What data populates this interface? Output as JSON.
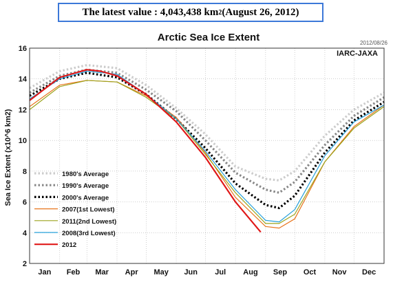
{
  "banner": {
    "prefix": "The latest value : 4,043,438 km",
    "superscript": "2",
    "suffix": " (August 26, 2012)"
  },
  "chart_data": {
    "type": "line",
    "title": "Arctic Sea Ice Extent",
    "date_stamp": "2012/08/26",
    "source_label": "IARC-JAXA",
    "ylabel": "Sea Ice Extent (x10^6 km2)",
    "xlabel": "",
    "ylim": [
      2,
      16
    ],
    "yticks": [
      "2",
      "4",
      "6",
      "8",
      "10",
      "12",
      "14",
      "16"
    ],
    "months": [
      "Jan",
      "Feb",
      "Mar",
      "Apr",
      "May",
      "Jun",
      "Jul",
      "Aug",
      "Sep",
      "Oct",
      "Nov",
      "Dec"
    ],
    "x_unit": "day of year",
    "xlim": [
      1,
      366
    ],
    "grid": true,
    "legend_position": "bottom-left",
    "series": [
      {
        "name": "1980's Average",
        "color": "#cccccc",
        "style": "dotted-thick",
        "x": [
          1,
          32,
          60,
          91,
          121,
          152,
          182,
          213,
          244,
          258,
          274,
          305,
          335,
          366
        ],
        "values": [
          13.4,
          14.5,
          14.9,
          14.7,
          13.6,
          12.1,
          10.4,
          8.3,
          7.5,
          7.4,
          8.0,
          10.3,
          12.0,
          13.1
        ]
      },
      {
        "name": "1990's Average",
        "color": "#888888",
        "style": "dotted-thick",
        "x": [
          1,
          32,
          60,
          91,
          121,
          152,
          182,
          213,
          244,
          258,
          274,
          305,
          335,
          366
        ],
        "values": [
          13.1,
          14.2,
          14.6,
          14.4,
          13.3,
          11.9,
          10.0,
          7.9,
          6.8,
          6.6,
          7.3,
          9.7,
          11.6,
          12.8
        ]
      },
      {
        "name": "2000's Average",
        "color": "#000000",
        "style": "dotted-thick",
        "x": [
          1,
          32,
          60,
          91,
          121,
          152,
          182,
          213,
          244,
          258,
          274,
          305,
          335,
          366
        ],
        "values": [
          12.9,
          14.0,
          14.4,
          14.1,
          13.0,
          11.4,
          9.5,
          7.2,
          5.8,
          5.6,
          6.4,
          9.2,
          11.3,
          12.5
        ]
      },
      {
        "name": "2007(1st Lowest)",
        "color": "#e8741c",
        "style": "solid",
        "x": [
          1,
          32,
          60,
          91,
          121,
          152,
          182,
          213,
          244,
          258,
          274,
          305,
          335,
          366
        ],
        "values": [
          12.2,
          13.6,
          13.9,
          13.8,
          12.9,
          11.5,
          9.2,
          6.3,
          4.4,
          4.3,
          4.9,
          8.6,
          10.9,
          12.3
        ]
      },
      {
        "name": "2011(2nd Lowest)",
        "color": "#9ba31b",
        "style": "solid",
        "x": [
          1,
          32,
          60,
          91,
          121,
          152,
          182,
          213,
          244,
          258,
          274,
          305,
          335,
          366
        ],
        "values": [
          12.0,
          13.5,
          13.9,
          13.8,
          12.8,
          11.4,
          9.1,
          6.6,
          4.6,
          4.6,
          5.2,
          8.6,
          10.8,
          12.2
        ]
      },
      {
        "name": "2008(3rd Lowest)",
        "color": "#26a0da",
        "style": "solid",
        "x": [
          1,
          32,
          60,
          91,
          121,
          152,
          182,
          213,
          244,
          258,
          274,
          305,
          335,
          366
        ],
        "values": [
          12.7,
          14.0,
          14.5,
          14.3,
          13.0,
          11.4,
          9.3,
          6.8,
          4.8,
          4.7,
          5.5,
          9.0,
          11.2,
          12.3
        ]
      },
      {
        "name": "2012",
        "color": "#e01818",
        "style": "solid-thick",
        "x": [
          1,
          32,
          60,
          74,
          91,
          121,
          152,
          182,
          213,
          239
        ],
        "values": [
          12.6,
          14.1,
          14.6,
          14.5,
          14.2,
          13.0,
          11.2,
          8.9,
          6.0,
          4.04
        ]
      }
    ]
  }
}
